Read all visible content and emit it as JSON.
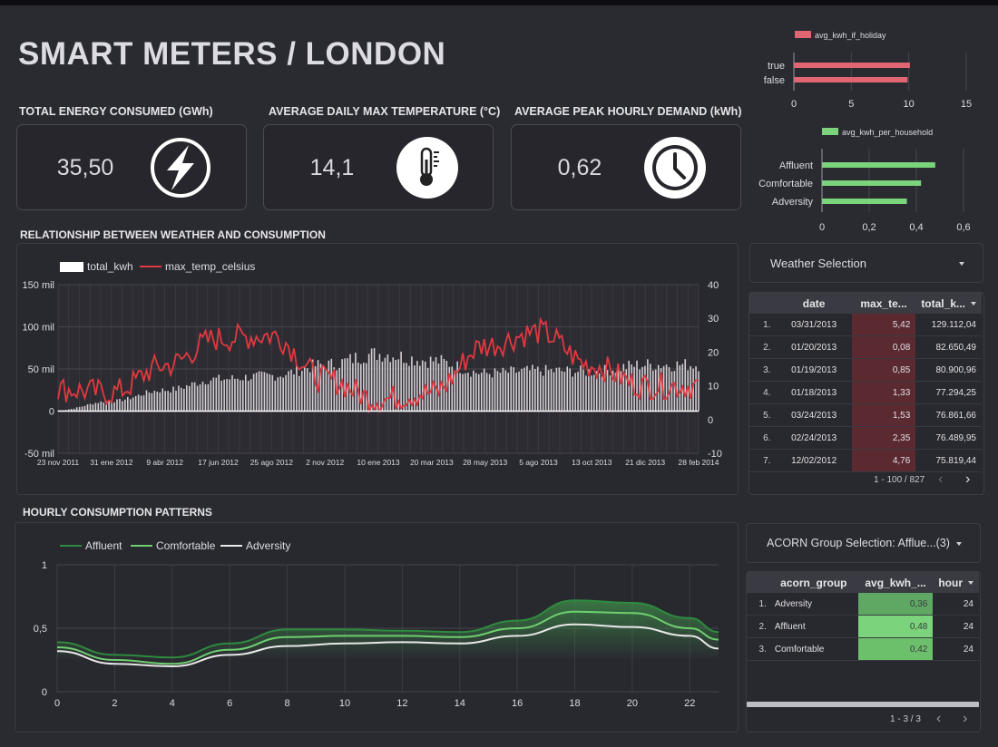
{
  "title": "SMART METERS / LONDON",
  "kpis": [
    {
      "label": "TOTAL ENERGY CONSUMED (GWh)",
      "value": "35,50",
      "icon": "lightning-icon"
    },
    {
      "label": "AVERAGE DAILY MAX TEMPERATURE (°C)",
      "value": "14,1",
      "icon": "thermometer-icon"
    },
    {
      "label": "AVERAGE PEAK HOURLY DEMAND (kWh)",
      "value": "0,62",
      "icon": "clock-icon"
    }
  ],
  "holiday_chart": {
    "legend": "avg_kwh_if_holiday",
    "color": "#e06673",
    "categories": [
      "true",
      "false"
    ],
    "values": [
      10.1,
      9.9
    ],
    "ticks": [
      "0",
      "5",
      "10",
      "15"
    ]
  },
  "household_chart": {
    "legend": "avg_kwh_per_household",
    "color": "#7bd47b",
    "categories": [
      "Affluent",
      "Comfortable",
      "Adversity"
    ],
    "values": [
      0.48,
      0.42,
      0.36
    ],
    "ticks": [
      "0",
      "0,2",
      "0,4",
      "0,6"
    ]
  },
  "weather_section": {
    "label": "RELATIONSHIP BETWEEN WEATHER AND CONSUMPTION",
    "legend": [
      "total_kwh",
      "max_temp_celsius"
    ],
    "y_left_ticks": [
      "150 mil",
      "100 mil",
      "50 mil",
      "0",
      "-50 mil"
    ],
    "y_right_ticks": [
      "40",
      "30",
      "20",
      "10",
      "0",
      "-10"
    ],
    "x_ticks": [
      "23 nov 2011",
      "31 ene 2012",
      "9 abr 2012",
      "17 jun 2012",
      "25 ago 2012",
      "2 nov 2012",
      "10 ene 2013",
      "20 mar 2013",
      "28 may 2013",
      "5 ago 2013",
      "13 oct 2013",
      "21 dic 2013",
      "28 feb 2014"
    ]
  },
  "chart_data": [
    {
      "type": "bar",
      "categories": [
        "true",
        "false"
      ],
      "series": [
        {
          "name": "avg_kwh_if_holiday",
          "values": [
            10.1,
            9.9
          ]
        }
      ],
      "xlim": [
        0,
        15
      ]
    },
    {
      "type": "bar",
      "categories": [
        "Affluent",
        "Comfortable",
        "Adversity"
      ],
      "series": [
        {
          "name": "avg_kwh_per_household",
          "values": [
            0.48,
            0.42,
            0.36
          ]
        }
      ],
      "xlim": [
        0,
        0.6
      ]
    },
    {
      "type": "line",
      "x": [
        "23 nov 2011",
        "31 ene 2012",
        "9 abr 2012",
        "17 jun 2012",
        "25 ago 2012",
        "2 nov 2012",
        "10 ene 2013",
        "20 mar 2013",
        "28 may 2013",
        "5 ago 2013",
        "13 oct 2013",
        "21 dic 2013",
        "28 feb 2014"
      ],
      "series": [
        {
          "name": "total_kwh",
          "values": [
            1000,
            12000,
            25000,
            38000,
            42000,
            55000,
            68000,
            60000,
            45000,
            48000,
            47000,
            55000,
            55000
          ]
        },
        {
          "name": "max_temp_celsius",
          "values": [
            9,
            8,
            16,
            24,
            25,
            12,
            6,
            8,
            22,
            26,
            16,
            10,
            10
          ]
        }
      ],
      "ylim": [
        -50000,
        150000
      ],
      "y2lim": [
        -10,
        40
      ]
    },
    {
      "type": "line",
      "x": [
        0,
        2,
        4,
        6,
        8,
        10,
        12,
        14,
        16,
        18,
        20,
        22,
        23
      ],
      "series": [
        {
          "name": "Affluent",
          "values": [
            0.39,
            0.29,
            0.27,
            0.38,
            0.49,
            0.49,
            0.48,
            0.47,
            0.56,
            0.72,
            0.7,
            0.58,
            0.47
          ]
        },
        {
          "name": "Comfortable",
          "values": [
            0.35,
            0.25,
            0.22,
            0.33,
            0.43,
            0.44,
            0.44,
            0.43,
            0.5,
            0.63,
            0.62,
            0.5,
            0.41
          ]
        },
        {
          "name": "Adversity",
          "values": [
            0.32,
            0.22,
            0.2,
            0.29,
            0.36,
            0.38,
            0.39,
            0.38,
            0.44,
            0.53,
            0.51,
            0.44,
            0.34
          ]
        }
      ],
      "ylim": [
        0,
        1
      ],
      "x_ticks": [
        "0",
        "2",
        "4",
        "6",
        "8",
        "10",
        "12",
        "14",
        "16",
        "18",
        "20",
        "22"
      ],
      "y_ticks": [
        "1",
        "0,5",
        "0"
      ]
    }
  ],
  "weather_table": {
    "dropdown": "Weather Selection",
    "columns": [
      "date",
      "max_te...",
      "total_k..."
    ],
    "rows": [
      {
        "n": "1.",
        "date": "03/31/2013",
        "temp": "5,42",
        "kwh": "129.112,04"
      },
      {
        "n": "2.",
        "date": "01/20/2013",
        "temp": "0,08",
        "kwh": "82.650,49"
      },
      {
        "n": "3.",
        "date": "01/19/2013",
        "temp": "0,85",
        "kwh": "80.900,96"
      },
      {
        "n": "4.",
        "date": "01/18/2013",
        "temp": "1,33",
        "kwh": "77.294,25"
      },
      {
        "n": "5.",
        "date": "03/24/2013",
        "temp": "1,53",
        "kwh": "76.861,66"
      },
      {
        "n": "6.",
        "date": "02/24/2013",
        "temp": "2,35",
        "kwh": "76.489,95"
      },
      {
        "n": "7.",
        "date": "12/02/2012",
        "temp": "4,76",
        "kwh": "75.819,44"
      }
    ],
    "pager": "1 - 100 / 827"
  },
  "hourly_section": {
    "label": "HOURLY CONSUMPTION PATTERNS",
    "legend": [
      "Affluent",
      "Comfortable",
      "Adversity"
    ],
    "colors": [
      "#2e8b3e",
      "#6fcf6f",
      "#e8e8e8"
    ]
  },
  "acorn_table": {
    "dropdown": "ACORN Group Selection: Afflue...(3)",
    "columns": [
      "acorn_group",
      "avg_kwh_...",
      "hour"
    ],
    "rows": [
      {
        "n": "1.",
        "group": "Adversity",
        "avg": "0,36",
        "hour": "24"
      },
      {
        "n": "2.",
        "group": "Affluent",
        "avg": "0,48",
        "hour": "24"
      },
      {
        "n": "3.",
        "group": "Comfortable",
        "avg": "0,42",
        "hour": "24"
      }
    ],
    "pager": "1 - 3 / 3"
  }
}
